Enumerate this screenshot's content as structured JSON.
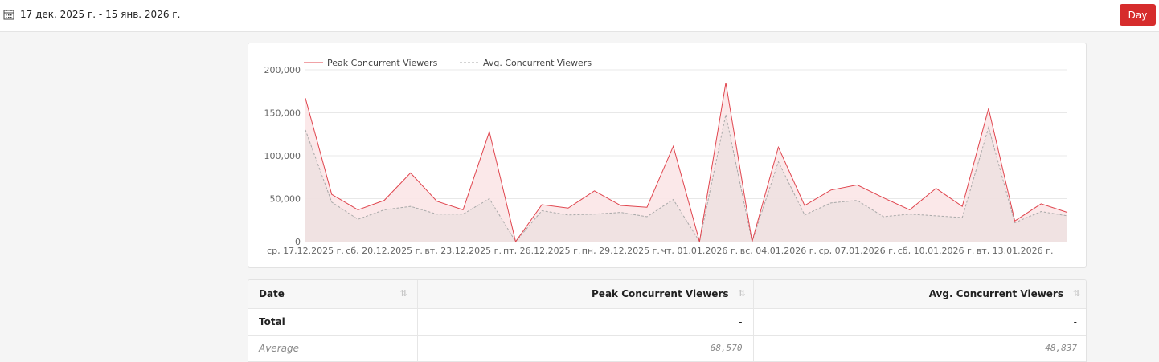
{
  "toolbar": {
    "date_range": "17 дек. 2025 г. - 15 янв. 2026 г.",
    "calendar_icon": "calendar-icon",
    "day_button": "Day"
  },
  "colors": {
    "accent": "#d62c2c",
    "peak_line": "#e0454e",
    "peak_fill": "#fbe6e7",
    "avg_line": "#a9a9a9"
  },
  "chart_data": {
    "type": "area",
    "legend_position": "top-left",
    "grid": true,
    "ylim": [
      0,
      200000
    ],
    "yticks": [
      "200,000",
      "150,000",
      "100,000",
      "50,000",
      "0"
    ],
    "ytick_values": [
      200000,
      150000,
      100000,
      50000,
      0
    ],
    "x": [
      "17.12.2025",
      "18.12.2025",
      "19.12.2025",
      "20.12.2025",
      "21.12.2025",
      "22.12.2025",
      "23.12.2025",
      "24.12.2025",
      "25.12.2025",
      "26.12.2025",
      "27.12.2025",
      "28.12.2025",
      "29.12.2025",
      "30.12.2025",
      "31.12.2025",
      "01.01.2026",
      "02.01.2026",
      "03.01.2026",
      "04.01.2026",
      "05.01.2026",
      "06.01.2026",
      "07.01.2026",
      "08.01.2026",
      "09.01.2026",
      "10.01.2026",
      "11.01.2026",
      "12.01.2026",
      "13.01.2026",
      "14.01.2026",
      "15.01.2026"
    ],
    "xtick_labels": [
      {
        "index": 0,
        "label": "ср, 17.12.2025 г."
      },
      {
        "index": 3,
        "label": "сб, 20.12.2025 г."
      },
      {
        "index": 6,
        "label": "вт, 23.12.2025 г."
      },
      {
        "index": 9,
        "label": "пт, 26.12.2025 г."
      },
      {
        "index": 12,
        "label": "пн, 29.12.2025 г."
      },
      {
        "index": 15,
        "label": "чт, 01.01.2026 г."
      },
      {
        "index": 18,
        "label": "вс, 04.01.2026 г."
      },
      {
        "index": 21,
        "label": "ср, 07.01.2026 г."
      },
      {
        "index": 24,
        "label": "сб, 10.01.2026 г."
      },
      {
        "index": 27,
        "label": "вт, 13.01.2026 г."
      }
    ],
    "series": [
      {
        "name": "Peak Concurrent Viewers",
        "style": "solid",
        "values": [
          167000,
          55000,
          37000,
          48000,
          80000,
          47000,
          37000,
          128000,
          0,
          43000,
          39000,
          59000,
          42000,
          40000,
          111000,
          0,
          185000,
          0,
          110000,
          42000,
          60000,
          66000,
          51000,
          37000,
          62000,
          41000,
          155000,
          24000,
          44000,
          34000
        ]
      },
      {
        "name": "Avg. Concurrent Viewers",
        "style": "dashed",
        "values": [
          130000,
          46000,
          26000,
          37000,
          41000,
          32000,
          32000,
          50000,
          0,
          36000,
          31000,
          32000,
          34000,
          29000,
          49000,
          0,
          148000,
          0,
          93000,
          31000,
          45000,
          48000,
          29000,
          32000,
          30000,
          28000,
          133000,
          22000,
          35000,
          30000
        ]
      }
    ]
  },
  "table": {
    "columns": [
      "Date",
      "Peak Concurrent Viewers",
      "Avg. Concurrent Viewers"
    ],
    "sort_icon": "sort-arrows-icon",
    "rows": [
      {
        "label": "Total",
        "peak": "-",
        "avg": "-"
      },
      {
        "label": "Average",
        "peak": "68,570",
        "avg": "48,837"
      }
    ]
  }
}
